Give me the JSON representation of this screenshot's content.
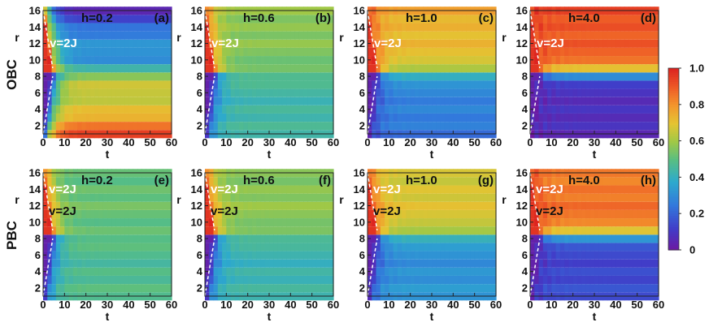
{
  "figure": {
    "row_labels": [
      "OBC",
      "PBC"
    ],
    "xlabel": "t",
    "ylabel": "r",
    "colormap": "rainbow (purple → blue → green → yellow → orange → red)"
  },
  "chart_data": [
    {
      "type": "heatmap",
      "panel_label": "(a)",
      "title": "h=0.2",
      "boundary": "OBC",
      "h": 0.2,
      "xlabel": "t",
      "ylabel": "r",
      "xlim": [
        0,
        60
      ],
      "ylim": [
        1,
        16
      ],
      "x_ticks": [
        "0",
        "10",
        "20",
        "30",
        "40",
        "50",
        "60"
      ],
      "y_ticks": [
        "2",
        "4",
        "6",
        "8",
        "10",
        "12",
        "14",
        "16"
      ],
      "annotations": [
        "v=2J"
      ],
      "lightcone_velocity": "v=2J",
      "late_time_upper": 0.35,
      "late_time_lower": 0.62,
      "late_time_edge_upper": 0.05,
      "late_time_edge_lower": 0.95
    },
    {
      "type": "heatmap",
      "panel_label": "(b)",
      "title": "h=0.6",
      "boundary": "OBC",
      "h": 0.6,
      "xlabel": "t",
      "ylabel": "r",
      "xlim": [
        0,
        60
      ],
      "ylim": [
        1,
        16
      ],
      "x_ticks": [
        "0",
        "10",
        "20",
        "30",
        "40",
        "50",
        "60"
      ],
      "y_ticks": [
        "2",
        "4",
        "6",
        "8",
        "10",
        "12",
        "14",
        "16"
      ],
      "annotations": [
        "v=2J"
      ],
      "lightcone_velocity": "v=2J",
      "late_time_upper": 0.55,
      "late_time_lower": 0.45,
      "late_time_edge_upper": 0.6,
      "late_time_edge_lower": 0.44
    },
    {
      "type": "heatmap",
      "panel_label": "(c)",
      "title": "h=1.0",
      "boundary": "OBC",
      "h": 1.0,
      "xlabel": "t",
      "ylabel": "r",
      "xlim": [
        0,
        60
      ],
      "ylim": [
        1,
        16
      ],
      "x_ticks": [
        "0",
        "10",
        "20",
        "30",
        "40",
        "50",
        "60"
      ],
      "y_ticks": [
        "2",
        "4",
        "6",
        "8",
        "10",
        "12",
        "14",
        "16"
      ],
      "annotations": [
        "v=2J"
      ],
      "lightcone_velocity": "v=2J",
      "late_time_upper": 0.7,
      "late_time_lower": 0.3,
      "late_time_edge_upper": 0.78,
      "late_time_edge_lower": 0.22
    },
    {
      "type": "heatmap",
      "panel_label": "(d)",
      "title": "h=4.0",
      "boundary": "OBC",
      "h": 4.0,
      "xlabel": "t",
      "ylabel": "r",
      "xlim": [
        0,
        60
      ],
      "ylim": [
        1,
        16
      ],
      "x_ticks": [
        "0",
        "10",
        "20",
        "30",
        "40",
        "50",
        "60"
      ],
      "y_ticks": [
        "2",
        "4",
        "6",
        "8",
        "10",
        "12",
        "14",
        "16"
      ],
      "annotations": [
        "v=2J"
      ],
      "lightcone_velocity": "v=2J",
      "late_time_upper": 0.88,
      "late_time_lower": 0.1,
      "late_time_edge_upper": 0.95,
      "late_time_edge_lower": 0.05
    },
    {
      "type": "heatmap",
      "panel_label": "(e)",
      "title": "h=0.2",
      "boundary": "PBC",
      "h": 0.2,
      "xlabel": "t",
      "ylabel": "r",
      "xlim": [
        0,
        60
      ],
      "ylim": [
        1,
        16
      ],
      "x_ticks": [
        "0",
        "10",
        "20",
        "30",
        "40",
        "50",
        "60"
      ],
      "y_ticks": [
        "2",
        "4",
        "6",
        "8",
        "10",
        "12",
        "14",
        "16"
      ],
      "annotations": [
        "v=2J",
        "v=2J"
      ],
      "lightcone_velocity": "v=2J",
      "late_time_upper": 0.52,
      "late_time_lower": 0.48,
      "late_time_edge_upper": 0.52,
      "late_time_edge_lower": 0.48
    },
    {
      "type": "heatmap",
      "panel_label": "(f)",
      "title": "h=0.6",
      "boundary": "PBC",
      "h": 0.6,
      "xlabel": "t",
      "ylabel": "r",
      "xlim": [
        0,
        60
      ],
      "ylim": [
        1,
        16
      ],
      "x_ticks": [
        "0",
        "10",
        "20",
        "30",
        "40",
        "50",
        "60"
      ],
      "y_ticks": [
        "2",
        "4",
        "6",
        "8",
        "10",
        "12",
        "14",
        "16"
      ],
      "annotations": [
        "v=2J",
        "v=2J"
      ],
      "lightcone_velocity": "v=2J",
      "late_time_upper": 0.57,
      "late_time_lower": 0.43,
      "late_time_edge_upper": 0.57,
      "late_time_edge_lower": 0.43
    },
    {
      "type": "heatmap",
      "panel_label": "(g)",
      "title": "h=1.0",
      "boundary": "PBC",
      "h": 1.0,
      "xlabel": "t",
      "ylabel": "r",
      "xlim": [
        0,
        60
      ],
      "ylim": [
        1,
        16
      ],
      "x_ticks": [
        "0",
        "10",
        "20",
        "30",
        "40",
        "50",
        "60"
      ],
      "y_ticks": [
        "2",
        "4",
        "6",
        "8",
        "10",
        "12",
        "14",
        "16"
      ],
      "annotations": [
        "v=2J",
        "v=2J"
      ],
      "lightcone_velocity": "v=2J",
      "late_time_upper": 0.68,
      "late_time_lower": 0.32,
      "late_time_edge_upper": 0.68,
      "late_time_edge_lower": 0.32
    },
    {
      "type": "heatmap",
      "panel_label": "(h)",
      "title": "h=4.0",
      "boundary": "PBC",
      "h": 4.0,
      "xlabel": "t",
      "ylabel": "r",
      "xlim": [
        0,
        60
      ],
      "ylim": [
        1,
        16
      ],
      "x_ticks": [
        "0",
        "10",
        "20",
        "30",
        "40",
        "50",
        "60"
      ],
      "y_ticks": [
        "2",
        "4",
        "6",
        "8",
        "10",
        "12",
        "14",
        "16"
      ],
      "annotations": [
        "v=2J",
        "v=2J"
      ],
      "lightcone_velocity": "v=2J",
      "late_time_upper": 0.85,
      "late_time_lower": 0.15,
      "late_time_edge_upper": 0.85,
      "late_time_edge_lower": 0.15
    }
  ],
  "colorbar": {
    "ticks": [
      {
        "value": 1.0,
        "label": "1.0"
      },
      {
        "value": 0.8,
        "label": "0.8"
      },
      {
        "value": 0.6,
        "label": "0.6"
      },
      {
        "value": 0.4,
        "label": "0.4"
      },
      {
        "value": 0.2,
        "label": "0.2"
      },
      {
        "value": 0.0,
        "label": "0"
      }
    ],
    "range": [
      0,
      1
    ]
  }
}
